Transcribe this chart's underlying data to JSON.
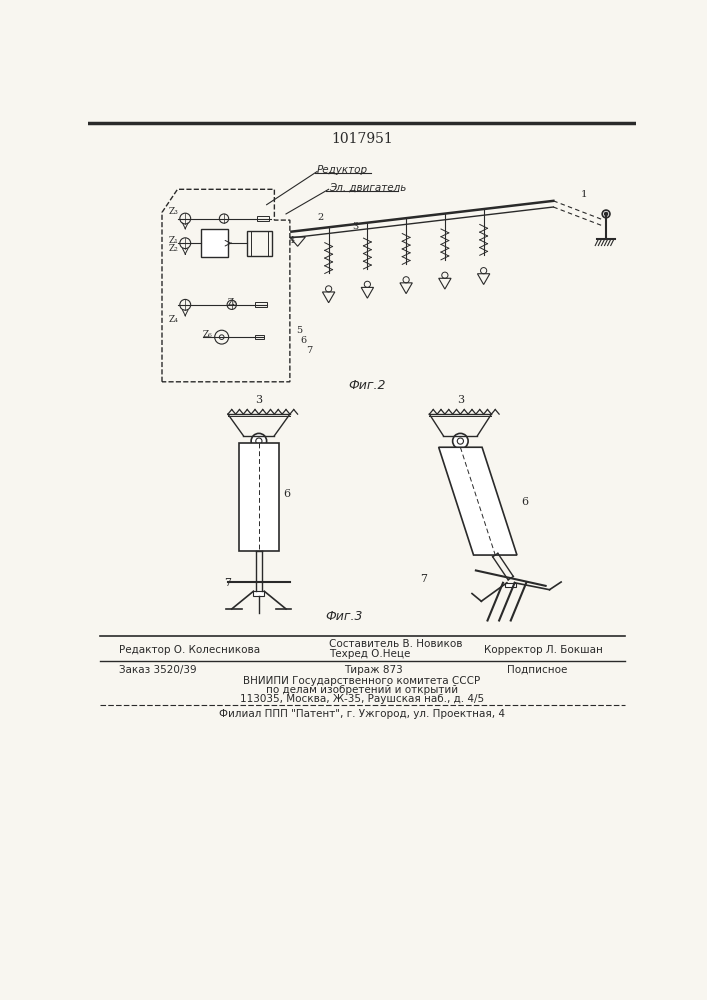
{
  "patent_number": "1017951",
  "bg_color": "#f8f6f0",
  "line_color": "#2a2a2a",
  "reduktor_label": "Редуктор",
  "el_dvigatel_label": "Эл. двигатель",
  "footer_line1_left": "Редактор О. Колесникова",
  "footer_line1_mid_top": "Составитель В. Новиков",
  "footer_line1_mid_bot": "Техред О.Неце",
  "footer_line1_right": "Корректор Л. Бокшан",
  "footer_line3_left": "Заказ 3520/39",
  "footer_line3_mid": "Тираж 873",
  "footer_line3_right": "Подписное",
  "footer_line4": "ВНИИПИ Государственного комитета СССР",
  "footer_line5": "по делам изобретений и открытий",
  "footer_line6": "113035, Москва, Ж-35, Раушская наб., д. 4/5",
  "footer_line7": "Филиал ППП \"Патент\", г. Ужгород, ул. Проектная, 4"
}
